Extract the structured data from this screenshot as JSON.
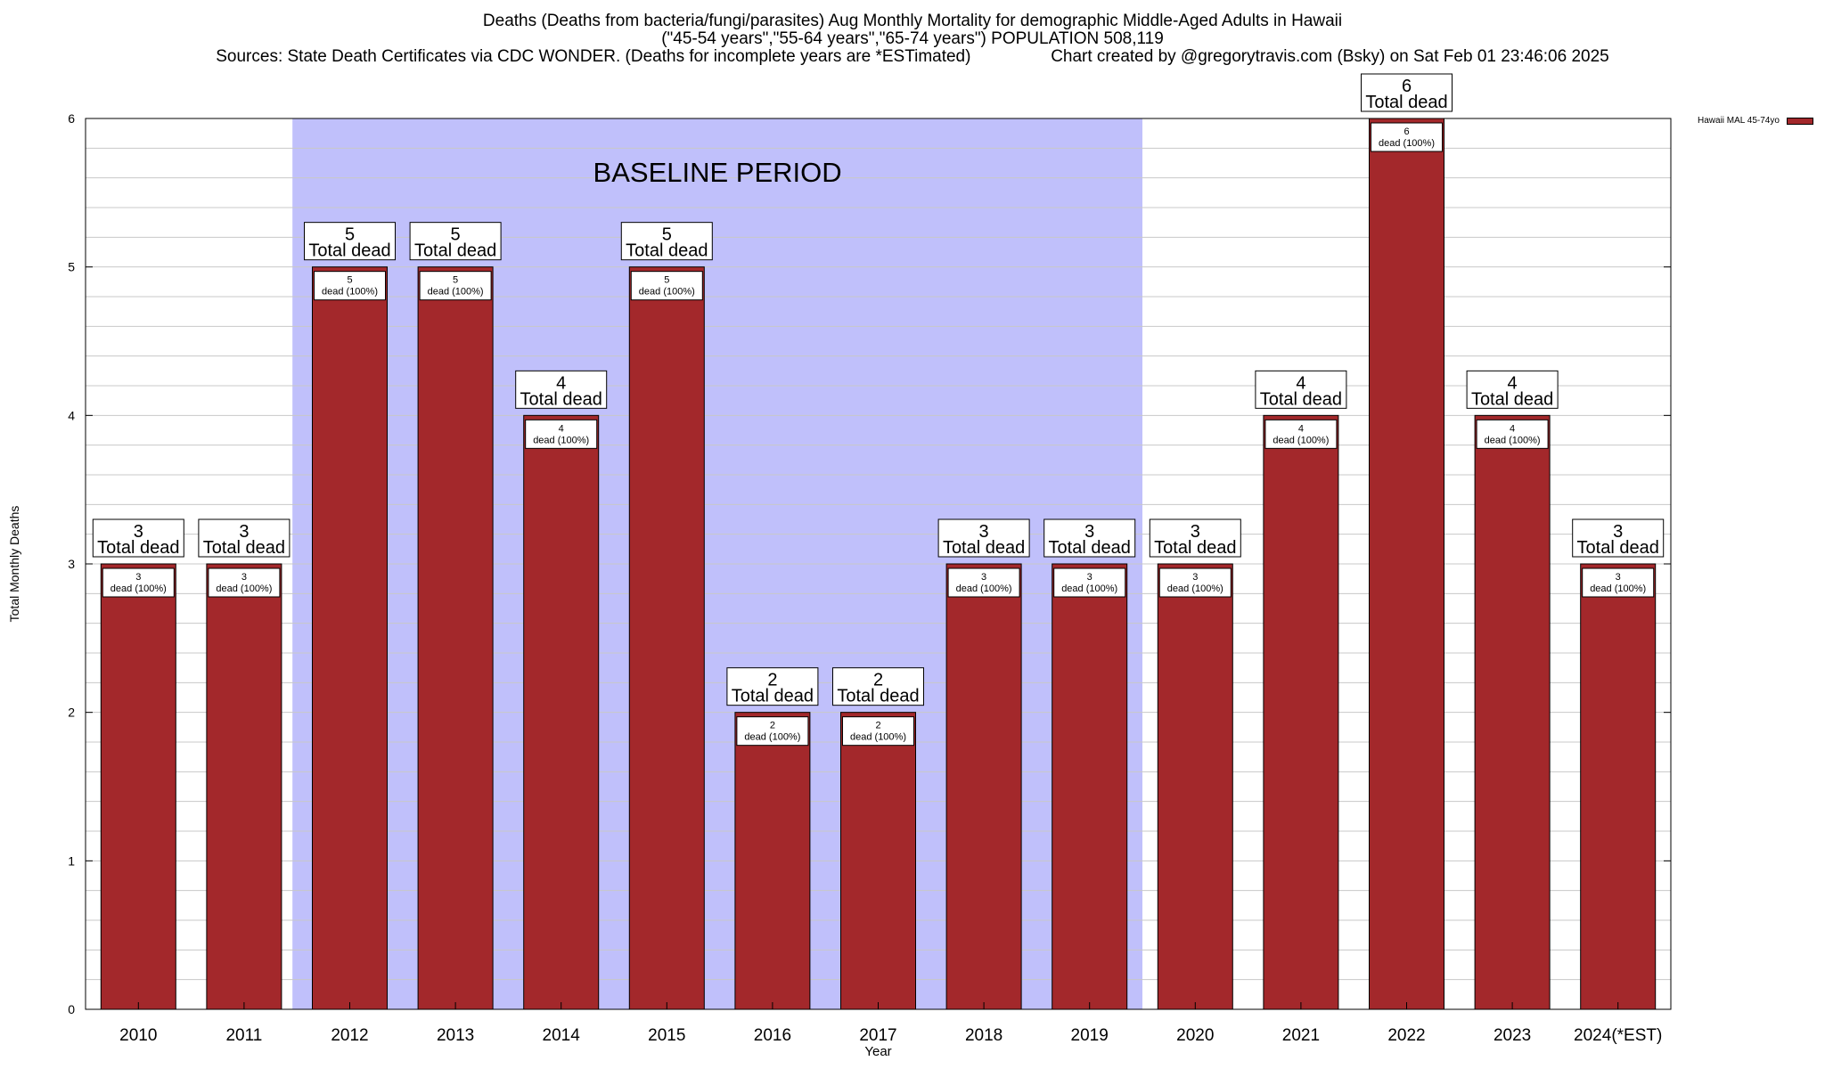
{
  "titles": [
    "Deaths (Deaths from bacteria/fungi/parasites) Aug Monthly Mortality for demographic Middle-Aged Adults in Hawaii",
    "(\"45-54 years\",\"55-64 years\",\"65-74 years\") POPULATION 508,119",
    "Sources: State Death Certificates via CDC WONDER. (Deaths for incomplete years are *ESTimated)                 Chart created by @gregorytravis.com (Bsky) on Sat Feb 01 23:46:06 2025"
  ],
  "colors": {
    "bar": "#a3282b",
    "baseline_band": "#c0c0fb",
    "grid": "#c8c8c8"
  },
  "chart_data": {
    "type": "bar",
    "xlabel": "Year",
    "ylabel": "Total Monthly Deaths",
    "ylim": [
      0,
      6
    ],
    "yticks": [
      0,
      1,
      2,
      3,
      4,
      5,
      6
    ],
    "grid": true,
    "legend_position": "top-right",
    "categories": [
      "2010",
      "2011",
      "2012",
      "2013",
      "2014",
      "2015",
      "2016",
      "2017",
      "2018",
      "2019",
      "2020",
      "2021",
      "2022",
      "2023",
      "2024(*EST)"
    ],
    "series": [
      {
        "name": "Hawaii MAL 45-74yo",
        "values": [
          3,
          3,
          5,
          5,
          4,
          5,
          2,
          2,
          3,
          3,
          3,
          4,
          6,
          4,
          3
        ]
      }
    ],
    "total_label_text": "Total dead",
    "inner_label_text": "dead (100%)",
    "annotation": {
      "text": "BASELINE PERIOD",
      "start_category": "2012",
      "end_category": "2019"
    }
  }
}
